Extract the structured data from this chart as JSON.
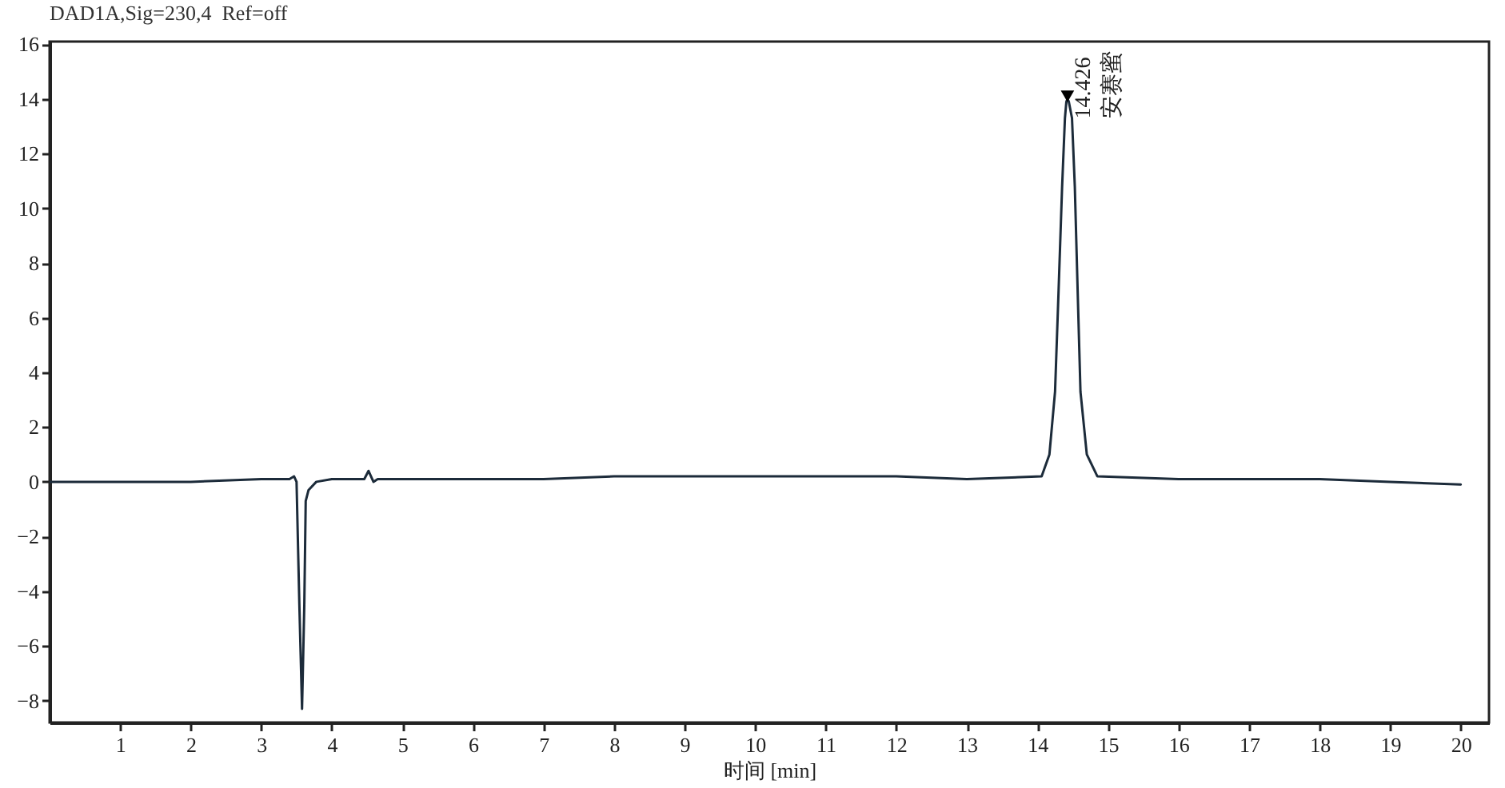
{
  "chart_data": {
    "type": "line",
    "title": "DAD1A,Sig=230,4  Ref=off",
    "xlabel": "时间 [min]",
    "xlim": [
      0,
      20.4
    ],
    "xticks": [
      1,
      2,
      3,
      4,
      5,
      6,
      7,
      8,
      9,
      10,
      11,
      12,
      13,
      14,
      15,
      16,
      17,
      18,
      19,
      20
    ],
    "ylim": [
      -8.8,
      16.1
    ],
    "yticks": [
      -8,
      -6,
      -4,
      -2,
      0,
      2,
      4,
      6,
      8,
      10,
      12,
      14,
      16
    ],
    "series": [
      {
        "type": "line",
        "color": "#1c2b3a",
        "x": [
          0,
          1,
          2,
          3,
          3.4,
          3.465,
          3.5,
          3.54,
          3.578,
          3.61,
          3.63,
          3.67,
          3.78,
          4.0,
          4.46,
          4.52,
          4.59,
          4.65,
          5,
          6,
          7,
          8,
          9,
          10,
          11,
          12,
          13,
          14.06,
          14.17,
          14.25,
          14.3,
          14.35,
          14.39,
          14.41,
          14.426,
          14.445,
          14.49,
          14.53,
          14.57,
          14.61,
          14.7,
          14.85,
          16,
          17,
          18,
          19,
          20
        ],
        "values": [
          0.0,
          0.0,
          0.0,
          0.1,
          0.1,
          0.2,
          0.0,
          -4.5,
          -8.3,
          -4.5,
          -0.7,
          -0.3,
          0.0,
          0.1,
          0.1,
          0.4,
          0.0,
          0.1,
          0.1,
          0.1,
          0.1,
          0.2,
          0.2,
          0.2,
          0.2,
          0.2,
          0.1,
          0.2,
          1.0,
          3.3,
          7.0,
          10.8,
          13.3,
          13.9,
          14.0,
          13.9,
          13.3,
          10.8,
          7.0,
          3.3,
          1.0,
          0.2,
          0.1,
          0.1,
          0.1,
          0.0,
          -0.1
        ]
      },
      {
        "type": "scatter",
        "color": "#000000",
        "marker": "triangle",
        "x": [
          14.426
        ],
        "values": [
          14.1
        ]
      }
    ],
    "annotations": [
      {
        "text": "14.426",
        "x": 14.426,
        "y": 14.1
      },
      {
        "text": "安赛蜜",
        "x": 14.426,
        "y": 14.1
      }
    ]
  }
}
